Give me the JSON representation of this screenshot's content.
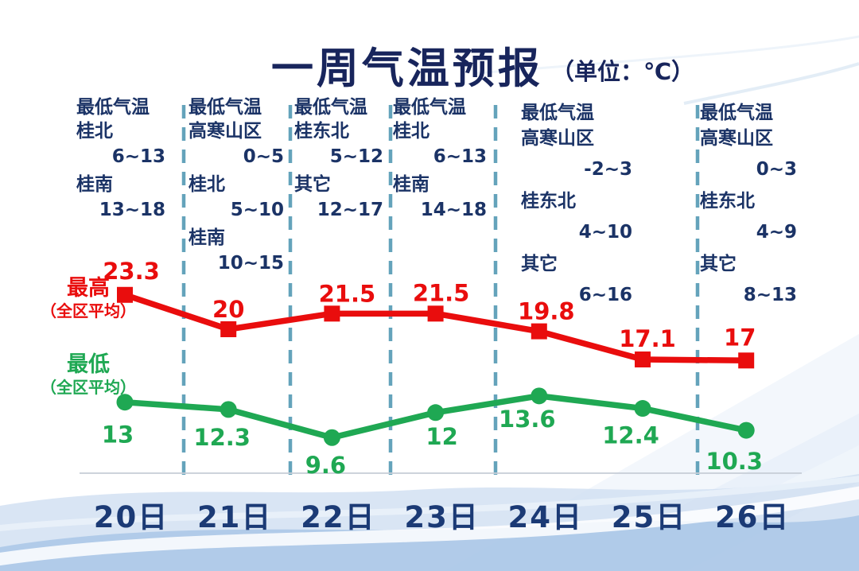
{
  "title": {
    "text": "一周气温预报",
    "unit": "（单位：℃）"
  },
  "colors": {
    "title_navy": "#18255c",
    "annotation_navy": "#1b3366",
    "day_label_navy": "#1b3a75",
    "max_red": "#e90d0d",
    "min_green": "#1fa853",
    "separator_teal": "#5c9fb8",
    "baseline_gray": "#c8cfd8"
  },
  "legend": {
    "max": {
      "line1": "最高",
      "line2": "（全区平均）"
    },
    "min": {
      "line1": "最低",
      "line2": "（全区平均）"
    }
  },
  "annotations": [
    {
      "rows": [
        {
          "kind": "label",
          "text": "最低气温"
        },
        {
          "kind": "label",
          "text": "桂北"
        },
        {
          "kind": "value",
          "text": "6~13"
        },
        {
          "kind": "label",
          "text": "桂南"
        },
        {
          "kind": "value",
          "text": "13~18"
        }
      ]
    },
    {
      "rows": [
        {
          "kind": "label",
          "text": "最低气温"
        },
        {
          "kind": "label",
          "text": "高寒山区"
        },
        {
          "kind": "value",
          "text": "0~5"
        },
        {
          "kind": "label",
          "text": "桂北"
        },
        {
          "kind": "value",
          "text": "5~10"
        },
        {
          "kind": "label",
          "text": "桂南"
        },
        {
          "kind": "value",
          "text": "10~15"
        }
      ]
    },
    {
      "rows": [
        {
          "kind": "label",
          "text": "最低气温"
        },
        {
          "kind": "label",
          "text": "桂东北"
        },
        {
          "kind": "value",
          "text": "5~12"
        },
        {
          "kind": "label",
          "text": "其它"
        },
        {
          "kind": "value",
          "text": "12~17"
        }
      ]
    },
    {
      "rows": [
        {
          "kind": "label",
          "text": "最低气温"
        },
        {
          "kind": "label",
          "text": "桂北"
        },
        {
          "kind": "value",
          "text": "6~13"
        },
        {
          "kind": "label",
          "text": "桂南"
        },
        {
          "kind": "value",
          "text": "14~18"
        }
      ]
    },
    {
      "rows": [
        {
          "kind": "label",
          "text": "最低气温"
        },
        {
          "kind": "label",
          "text": "高寒山区"
        },
        {
          "kind": "value",
          "text": "-2~3"
        },
        {
          "kind": "label",
          "text": "桂东北"
        },
        {
          "kind": "value",
          "text": "4~10"
        },
        {
          "kind": "label",
          "text": "其它"
        },
        {
          "kind": "value",
          "text": "6~16"
        }
      ]
    },
    {
      "rows": [
        {
          "kind": "label",
          "text": "最低气温"
        },
        {
          "kind": "label",
          "text": "高寒山区"
        },
        {
          "kind": "value",
          "text": "0~3"
        },
        {
          "kind": "label",
          "text": "桂东北"
        },
        {
          "kind": "value",
          "text": "4~9"
        },
        {
          "kind": "label",
          "text": "其它"
        },
        {
          "kind": "value",
          "text": "8~13"
        }
      ]
    }
  ],
  "days": [
    "20日",
    "21日",
    "22日",
    "23日",
    "24日",
    "25日",
    "26日"
  ],
  "chart_data": {
    "type": "line",
    "title": "一周气温预报",
    "unit": "℃",
    "categories": [
      "20日",
      "21日",
      "22日",
      "23日",
      "24日",
      "25日",
      "26日"
    ],
    "series": [
      {
        "name": "最高（全区平均）",
        "color": "#e90d0d",
        "marker": "square",
        "values": [
          23.3,
          20,
          21.5,
          21.5,
          19.8,
          17.1,
          17
        ],
        "labels": [
          "23.3",
          "20",
          "21.5",
          "21.5",
          "19.8",
          "17.1",
          "17"
        ]
      },
      {
        "name": "最低（全区平均）",
        "color": "#1fa853",
        "marker": "circle",
        "values": [
          13,
          12.3,
          9.6,
          12,
          13.6,
          12.4,
          10.3
        ],
        "labels": [
          "13",
          "12.3",
          "9.6",
          "12",
          "13.6",
          "12.4",
          "10.3"
        ]
      }
    ],
    "ylim": [
      8,
      25
    ],
    "grid": "dashed vertical day separators",
    "legend_position": "left"
  }
}
